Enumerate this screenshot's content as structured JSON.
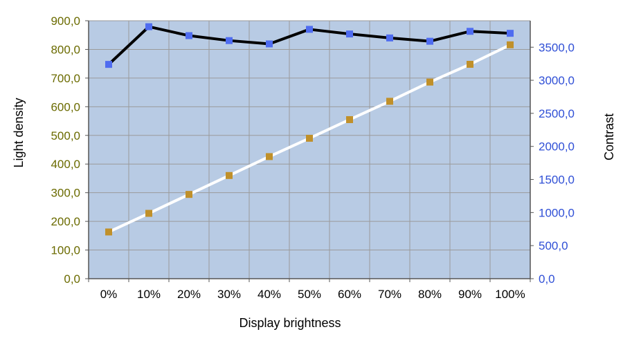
{
  "chart_data": {
    "type": "line",
    "xlabel": "Display brightness",
    "ylabel_left": "Light density",
    "ylabel_right": "Contrast",
    "categories": [
      "0%",
      "10%",
      "20%",
      "30%",
      "40%",
      "50%",
      "60%",
      "70%",
      "80%",
      "90%",
      "100%"
    ],
    "y_left": {
      "lim": [
        0,
        900
      ],
      "ticks": [
        0,
        100,
        200,
        300,
        400,
        500,
        600,
        700,
        800,
        900
      ],
      "tick_labels": [
        "0,0",
        "100,0",
        "200,0",
        "300,0",
        "400,0",
        "500,0",
        "600,0",
        "700,0",
        "800,0",
        "900,0"
      ]
    },
    "y_right": {
      "lim": [
        0,
        3900
      ],
      "ticks": [
        0,
        500,
        1000,
        1500,
        2000,
        2500,
        3000,
        3500
      ],
      "tick_labels": [
        "0,0",
        "500,0",
        "1000,0",
        "1500,0",
        "2000,0",
        "2500,0",
        "3000,0",
        "3500,0"
      ]
    },
    "series": [
      {
        "axis": "left",
        "line_color": "#ffffff",
        "marker_color": "#c0902a",
        "values": [
          163,
          228,
          294,
          360,
          426,
          490,
          555,
          619,
          686,
          748,
          816
        ]
      },
      {
        "axis": "right",
        "line_color": "#000000",
        "marker_color": "#4f6cf0",
        "values": [
          3240,
          3810,
          3675,
          3600,
          3550,
          3770,
          3700,
          3640,
          3590,
          3740,
          3710
        ]
      }
    ],
    "grid": true,
    "plot_background": "#b8cbe4",
    "grid_color": "#9a9a9a",
    "colors": {
      "left_ticks": "#6b6b00",
      "right_ticks": "#2f4fd6",
      "x_ticks": "#000000"
    }
  }
}
